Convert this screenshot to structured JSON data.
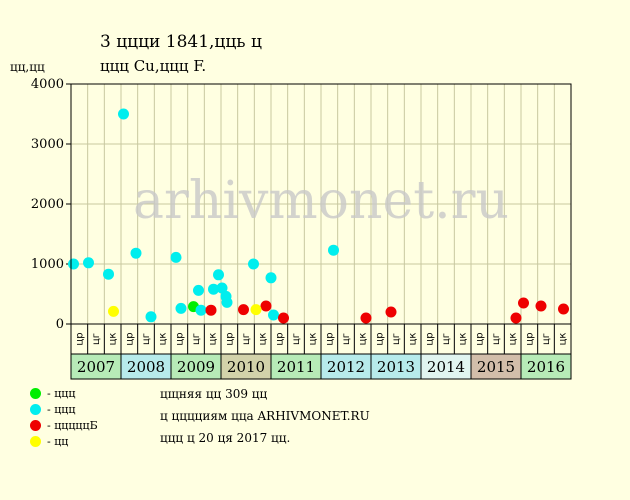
{
  "header": {
    "title": "3 ццци 1841,цць ц",
    "subtitle": "ццц Cu,ццц F."
  },
  "legend": [
    {
      "color": "#00EE00",
      "label": "- ццц"
    },
    {
      "color": "#00EEEE",
      "label": "- ццц"
    },
    {
      "color": "#EE0000",
      "label": "- цццццБ"
    },
    {
      "color": "#FFFF00",
      "label": "- цц"
    }
  ],
  "info": {
    "line1": "цщняя цц 309 цц",
    "line2": "ц цццциям цца ARHIVMONET.RU",
    "line3": "ццц ц 20 ця 2017 цц."
  },
  "watermark": "arhivmonet.ru",
  "chart_data": {
    "type": "scatter",
    "ylabel": "цц,цц",
    "ylim": [
      0,
      4000
    ],
    "yticks": [
      0,
      1000,
      2000,
      3000,
      4000
    ],
    "x_unit": "year",
    "xlim": [
      2007,
      2017
    ],
    "subperiod_labels": [
      "цр",
      "цг",
      "цк"
    ],
    "years": [
      {
        "label": "2007",
        "color": "#B7EBB7"
      },
      {
        "label": "2008",
        "color": "#B7EBEB"
      },
      {
        "label": "2009",
        "color": "#B7EBB7"
      },
      {
        "label": "2010",
        "color": "#D2D2AA"
      },
      {
        "label": "2011",
        "color": "#B7EBB7"
      },
      {
        "label": "2012",
        "color": "#B7EBEB"
      },
      {
        "label": "2013",
        "color": "#B7EBEB"
      },
      {
        "label": "2014",
        "color": "#E1F5F0"
      },
      {
        "label": "2015",
        "color": "#D2BEAA"
      },
      {
        "label": "2016",
        "color": "#B7EBB7"
      }
    ],
    "series": [
      {
        "color": "#00EE00",
        "points": [
          [
            2009.45,
            290
          ]
        ]
      },
      {
        "color": "#00EEEE",
        "points": [
          [
            2007.05,
            1000
          ],
          [
            2007.35,
            1020
          ],
          [
            2007.75,
            830
          ],
          [
            2008.05,
            3500
          ],
          [
            2008.3,
            1180
          ],
          [
            2008.6,
            120
          ],
          [
            2009.1,
            1110
          ],
          [
            2009.2,
            260
          ],
          [
            2009.55,
            560
          ],
          [
            2009.6,
            230
          ],
          [
            2009.85,
            580
          ],
          [
            2009.95,
            820
          ],
          [
            2010.02,
            600
          ],
          [
            2010.1,
            460
          ],
          [
            2010.12,
            360
          ],
          [
            2010.65,
            1000
          ],
          [
            2011.0,
            770
          ],
          [
            2011.05,
            150
          ],
          [
            2012.25,
            1230
          ]
        ]
      },
      {
        "color": "#EE0000",
        "points": [
          [
            2009.8,
            230
          ],
          [
            2010.45,
            240
          ],
          [
            2010.9,
            300
          ],
          [
            2011.25,
            100
          ],
          [
            2012.9,
            100
          ],
          [
            2013.4,
            200
          ],
          [
            2015.9,
            100
          ],
          [
            2016.05,
            350
          ],
          [
            2016.4,
            300
          ],
          [
            2016.85,
            250
          ]
        ]
      },
      {
        "color": "#FFFF00",
        "points": [
          [
            2007.85,
            210
          ],
          [
            2010.7,
            240
          ]
        ]
      }
    ]
  }
}
